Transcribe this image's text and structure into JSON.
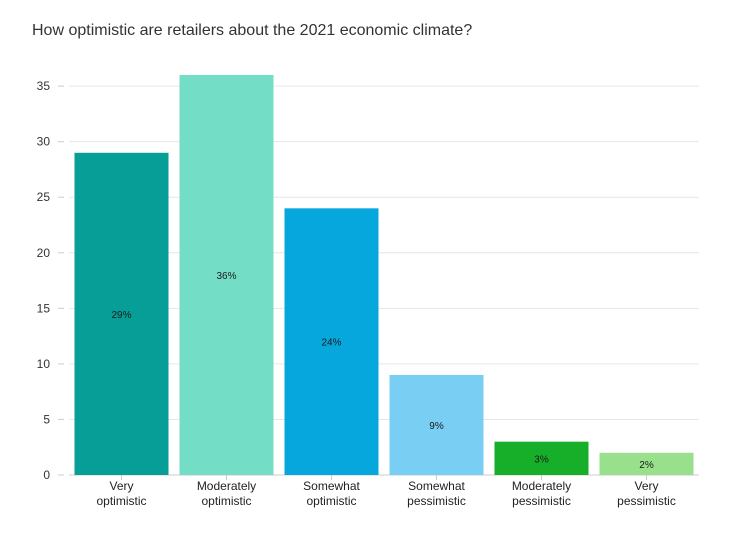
{
  "chart_data": {
    "type": "bar",
    "title": "How optimistic are retailers about the 2021 economic climate?",
    "categories": [
      [
        "Very",
        "optimistic"
      ],
      [
        "Moderately",
        "optimistic"
      ],
      [
        "Somewhat",
        "optimistic"
      ],
      [
        "Somewhat",
        "pessimistic"
      ],
      [
        "Moderately",
        "pessimistic"
      ],
      [
        "Very",
        "pessimistic"
      ]
    ],
    "values": [
      29,
      36,
      24,
      9,
      3,
      2
    ],
    "data_labels": [
      "29%",
      "36%",
      "24%",
      "9%",
      "3%",
      "2%"
    ],
    "colors": [
      "#079e97",
      "#74ddc5",
      "#06a7dc",
      "#79cff3",
      "#17ae2a",
      "#98e08c"
    ],
    "yticks": [
      0,
      5,
      10,
      15,
      20,
      25,
      30,
      35
    ],
    "ylim": [
      0,
      36
    ],
    "xlabel": "",
    "ylabel": "",
    "grid": true
  }
}
